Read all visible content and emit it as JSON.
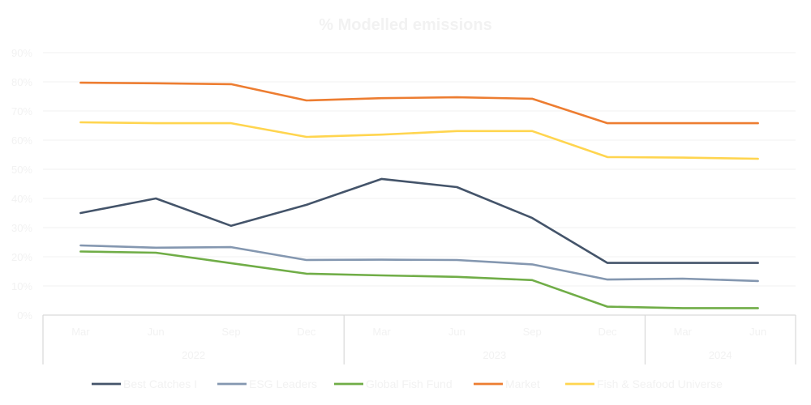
{
  "chart_data": {
    "type": "line",
    "title": "% Modelled emissions",
    "xlabel": "",
    "ylabel": "",
    "ylim": [
      0,
      90
    ],
    "yticks": [
      "0%",
      "10%",
      "20%",
      "30%",
      "40%",
      "50%",
      "60%",
      "70%",
      "80%",
      "90%"
    ],
    "grid": true,
    "legend_position": "bottom",
    "categories": [
      "Mar",
      "Jun",
      "Sep",
      "Dec",
      "Mar",
      "Jun",
      "Sep",
      "Dec",
      "Mar",
      "Jun"
    ],
    "category_groups": [
      {
        "label": "2022",
        "count": 4
      },
      {
        "label": "2023",
        "count": 4
      },
      {
        "label": "2024",
        "count": 2
      }
    ],
    "series": [
      {
        "name": "Best Catches I",
        "color": "#44546a",
        "values": [
          35.0,
          40.0,
          30.6,
          37.8,
          46.7,
          43.9,
          33.3,
          17.9,
          17.9,
          17.9
        ]
      },
      {
        "name": "ESG Leaders",
        "color": "#8497b0",
        "values": [
          23.9,
          23.1,
          23.3,
          18.9,
          19.0,
          18.9,
          17.4,
          12.2,
          12.5,
          11.7
        ]
      },
      {
        "name": "Global Fish Fund",
        "color": "#70ad47",
        "values": [
          21.8,
          21.4,
          17.8,
          14.2,
          13.6,
          13.1,
          12.0,
          2.9,
          2.4,
          2.4
        ]
      },
      {
        "name": "Market",
        "color": "#ed7d31",
        "values": [
          79.7,
          79.5,
          79.2,
          73.6,
          74.4,
          74.7,
          74.2,
          65.8,
          65.8,
          65.8
        ]
      },
      {
        "name": "Fish & Seafood Universe",
        "color": "#ffd54f",
        "values": [
          66.1,
          65.8,
          65.8,
          61.1,
          61.9,
          63.1,
          63.1,
          54.2,
          54.0,
          53.6
        ]
      }
    ]
  }
}
